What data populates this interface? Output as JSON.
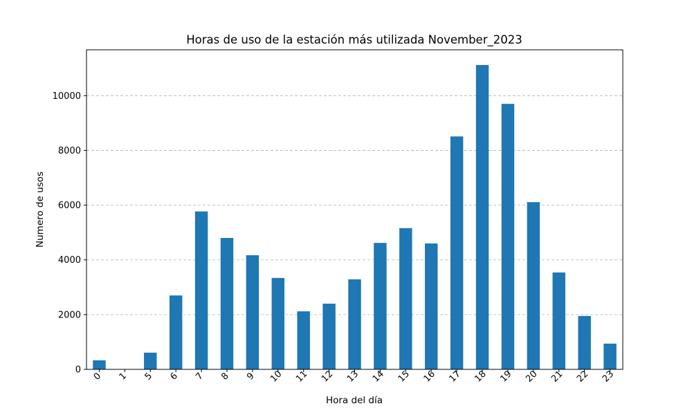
{
  "chart_data": {
    "type": "bar",
    "title": "Horas de uso de la estación más utilizada November_2023",
    "xlabel": "Hora del día",
    "ylabel": "Numero de usos",
    "categories": [
      "0",
      "1",
      "5",
      "6",
      "7",
      "8",
      "9",
      "10",
      "11",
      "12",
      "13",
      "14",
      "15",
      "16",
      "17",
      "18",
      "19",
      "20",
      "21",
      "22",
      "23"
    ],
    "values": [
      330,
      10,
      610,
      2700,
      5770,
      4800,
      4170,
      3340,
      2120,
      2400,
      3290,
      4620,
      5160,
      4600,
      8510,
      11120,
      9700,
      6110,
      3540,
      1950,
      940
    ],
    "ylim": [
      0,
      11676
    ],
    "yticks": [
      0,
      2000,
      4000,
      6000,
      8000,
      10000
    ],
    "grid": "y-dashed",
    "color": "#1f77b4"
  }
}
